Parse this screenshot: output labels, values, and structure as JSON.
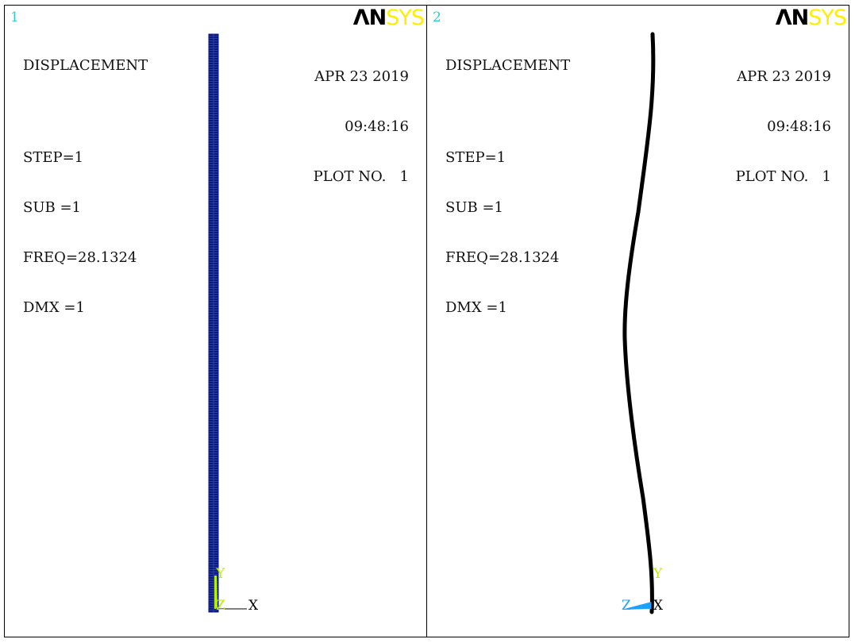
{
  "viewports": [
    {
      "number": "1",
      "title": "DISPLACEMENT",
      "step": "STEP=1",
      "sub": "SUB =1",
      "freq": "FREQ=28.1324",
      "dmx": "DMX =1",
      "date": "APR 23 2019",
      "time": "09:48:16",
      "plot_no": "PLOT NO.   1",
      "logo_an": "ΛN",
      "logo_sys": "SYS",
      "axis": {
        "y": "Y",
        "z": "Z",
        "x": "X"
      },
      "plot_kind": "undeformed-mesh"
    },
    {
      "number": "2",
      "title": "DISPLACEMENT",
      "step": "STEP=1",
      "sub": "SUB =1",
      "freq": "FREQ=28.1324",
      "dmx": "DMX =1",
      "date": "APR 23 2019",
      "time": "09:48:16",
      "plot_no": "PLOT NO.   1",
      "logo_an": "ΛN",
      "logo_sys": "SYS",
      "axis": {
        "y": "Y",
        "z": "Z",
        "x": "X"
      },
      "plot_kind": "deformed-shape"
    }
  ],
  "colors": {
    "mesh": "#0a1a80",
    "deformed": "#000000",
    "axis_y": "#b4f000",
    "axis_z_vp1": "#b4f000",
    "axis_z_vp2": "#1ea0ff",
    "axis_x": "#000000",
    "viewport_number": "#33cccc",
    "logo_sys": "#ffee00"
  }
}
